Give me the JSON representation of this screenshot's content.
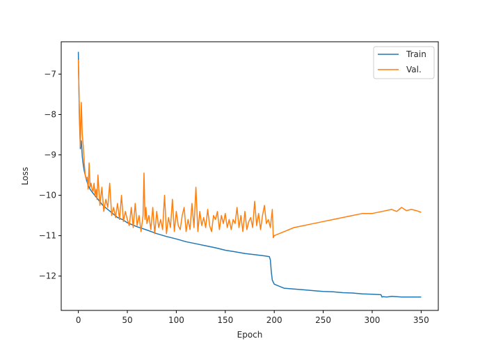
{
  "chart_data": {
    "type": "line",
    "title": "",
    "xlabel": "Epoch",
    "ylabel": "Loss",
    "xlim": [
      -17.5,
      367.5
    ],
    "ylim": [
      -12.85,
      -6.2
    ],
    "xticks": [
      0,
      50,
      100,
      150,
      200,
      250,
      300,
      350
    ],
    "yticks": [
      -12,
      -11,
      -10,
      -9,
      -8,
      -7
    ],
    "ytick_labels": [
      "−12",
      "−11",
      "−10",
      "−9",
      "−8",
      "−7"
    ],
    "grid": false,
    "legend_position": "top-right",
    "series": [
      {
        "name": "Train",
        "color": "#1f77b4",
        "x": [
          0,
          1,
          2,
          3,
          4,
          5,
          6,
          7,
          8,
          10,
          12,
          15,
          20,
          25,
          30,
          35,
          40,
          45,
          50,
          60,
          70,
          80,
          90,
          100,
          110,
          120,
          130,
          140,
          150,
          160,
          170,
          180,
          190,
          195,
          196,
          197,
          198,
          199,
          200,
          205,
          210,
          220,
          230,
          240,
          250,
          260,
          270,
          280,
          290,
          300,
          309,
          310,
          311,
          315,
          320,
          330,
          340,
          350
        ],
        "y": [
          -6.45,
          -8.0,
          -8.85,
          -8.65,
          -9.05,
          -9.25,
          -9.4,
          -9.5,
          -9.6,
          -9.75,
          -9.85,
          -9.95,
          -10.1,
          -10.25,
          -10.35,
          -10.45,
          -10.55,
          -10.6,
          -10.68,
          -10.78,
          -10.86,
          -10.95,
          -11.02,
          -11.08,
          -11.15,
          -11.2,
          -11.25,
          -11.3,
          -11.36,
          -11.4,
          -11.44,
          -11.47,
          -11.5,
          -11.52,
          -11.6,
          -11.9,
          -12.1,
          -12.15,
          -12.2,
          -12.25,
          -12.3,
          -12.32,
          -12.34,
          -12.36,
          -12.38,
          -12.39,
          -12.41,
          -12.42,
          -12.44,
          -12.45,
          -12.46,
          -12.52,
          -12.51,
          -12.52,
          -12.5,
          -12.52,
          -12.52,
          -12.52
        ]
      },
      {
        "name": "Val.",
        "color": "#ff7f0e",
        "x": [
          0,
          1,
          2,
          3,
          4,
          5,
          6,
          7,
          8,
          9,
          10,
          11,
          12,
          13,
          14,
          15,
          16,
          17,
          18,
          19,
          20,
          22,
          24,
          26,
          28,
          30,
          32,
          34,
          36,
          38,
          40,
          42,
          44,
          46,
          48,
          50,
          52,
          54,
          56,
          58,
          60,
          62,
          64,
          66,
          67,
          68,
          69,
          70,
          72,
          74,
          76,
          78,
          80,
          82,
          84,
          86,
          88,
          90,
          92,
          94,
          96,
          98,
          100,
          102,
          104,
          106,
          108,
          110,
          112,
          114,
          116,
          118,
          120,
          122,
          124,
          126,
          128,
          130,
          132,
          134,
          136,
          138,
          140,
          142,
          144,
          146,
          148,
          150,
          152,
          154,
          156,
          158,
          160,
          162,
          164,
          166,
          168,
          170,
          172,
          174,
          176,
          178,
          180,
          182,
          184,
          186,
          188,
          190,
          192,
          194,
          196,
          198,
          199,
          200,
          210,
          220,
          230,
          240,
          250,
          260,
          270,
          280,
          290,
          300,
          310,
          320,
          325,
          330,
          335,
          340,
          345,
          350
        ],
        "y": [
          -6.65,
          -7.8,
          -8.8,
          -7.7,
          -8.5,
          -8.8,
          -9.2,
          -9.5,
          -9.6,
          -9.55,
          -9.85,
          -9.2,
          -9.8,
          -9.7,
          -9.85,
          -9.9,
          -9.7,
          -10.0,
          -9.85,
          -10.1,
          -9.5,
          -10.25,
          -9.8,
          -10.4,
          -10.1,
          -10.3,
          -9.7,
          -10.5,
          -10.3,
          -10.55,
          -10.2,
          -10.6,
          -10.0,
          -10.65,
          -10.4,
          -10.6,
          -10.75,
          -10.3,
          -10.8,
          -10.2,
          -10.75,
          -10.5,
          -10.9,
          -10.5,
          -9.45,
          -10.6,
          -10.3,
          -10.7,
          -10.5,
          -10.85,
          -10.3,
          -10.95,
          -10.4,
          -10.8,
          -10.6,
          -10.85,
          -10.0,
          -10.95,
          -10.55,
          -10.8,
          -10.1,
          -10.9,
          -10.4,
          -10.75,
          -10.85,
          -10.5,
          -10.3,
          -10.9,
          -10.6,
          -10.85,
          -10.2,
          -10.8,
          -9.8,
          -10.9,
          -10.4,
          -10.75,
          -10.55,
          -10.8,
          -10.35,
          -10.75,
          -10.9,
          -10.5,
          -10.6,
          -10.4,
          -10.85,
          -10.5,
          -10.7,
          -10.45,
          -10.8,
          -10.6,
          -10.85,
          -10.6,
          -10.7,
          -10.3,
          -10.8,
          -10.5,
          -10.9,
          -10.4,
          -10.85,
          -10.65,
          -10.55,
          -10.8,
          -10.15,
          -10.75,
          -10.45,
          -10.85,
          -10.5,
          -10.25,
          -10.7,
          -10.6,
          -10.8,
          -10.35,
          -11.05,
          -11.0,
          -10.9,
          -10.8,
          -10.75,
          -10.7,
          -10.65,
          -10.6,
          -10.55,
          -10.5,
          -10.45,
          -10.45,
          -10.4,
          -10.35,
          -10.4,
          -10.3,
          -10.38,
          -10.35,
          -10.38,
          -10.42
        ]
      }
    ]
  }
}
